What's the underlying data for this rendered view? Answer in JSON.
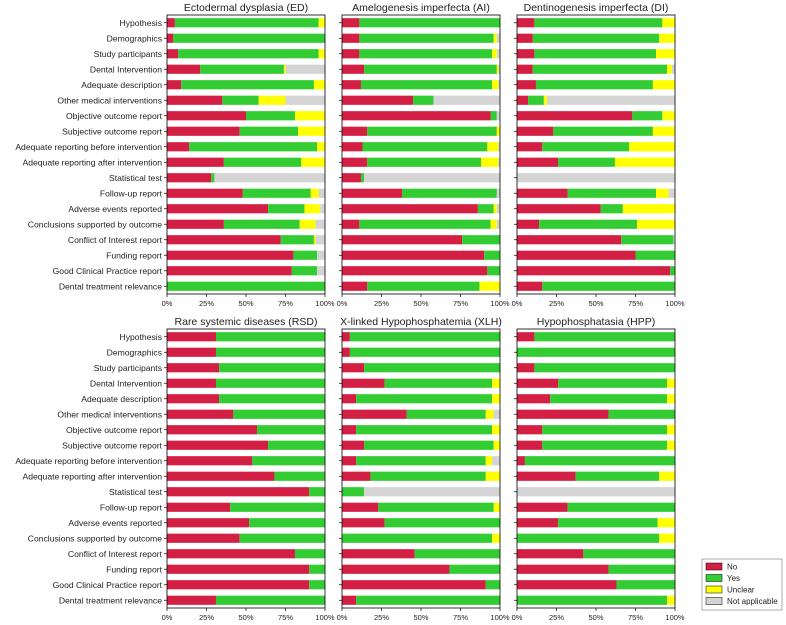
{
  "figure": {
    "categories": [
      "Hypothesis",
      "Demographics",
      "Study participants",
      "Dental Intervention",
      "Adequate description",
      "Other medical interventions",
      "Objective outcome report",
      "Subjective outcome report",
      "Adequate reporting before intervention",
      "Adequate reporting after intervention",
      "Statistical test",
      "Follow-up report",
      "Adverse events reported",
      "Conclusions supported by outcome",
      "Conflict of Interest report",
      "Funding report",
      "Good Clinical Practice report",
      "Dental treatment relevance"
    ],
    "xtick_labels": [
      "0%",
      "25%",
      "50%",
      "75%",
      "100%"
    ],
    "legend": [
      {
        "key": "no",
        "label": "No",
        "color": "#d41f45"
      },
      {
        "key": "yes",
        "label": "Yes",
        "color": "#33cc33"
      },
      {
        "key": "unclear",
        "label": "Unclear",
        "color": "#ffff00"
      },
      {
        "key": "na",
        "label": "Not applicable",
        "color": "#d4d4d4"
      }
    ]
  },
  "chart_data": [
    {
      "type": "bar",
      "stacked": true,
      "orientation": "horizontal",
      "title": "Ectodermal dysplasia (ED)",
      "xlim": [
        0,
        100
      ],
      "series": [
        {
          "name": "No",
          "values": [
            5,
            4,
            7,
            21,
            9,
            35,
            50,
            46,
            14,
            36,
            28,
            48,
            64,
            36,
            72,
            80,
            79,
            0
          ]
        },
        {
          "name": "Yes",
          "values": [
            91,
            96,
            89,
            53,
            84,
            23,
            31,
            37,
            81,
            49,
            2,
            43,
            23,
            48,
            21,
            15,
            16,
            100
          ]
        },
        {
          "name": "Unclear",
          "values": [
            4,
            0,
            4,
            1,
            7,
            17,
            19,
            17,
            5,
            15,
            0,
            5,
            10,
            10,
            1,
            0,
            0,
            0
          ]
        },
        {
          "name": "Not applicable",
          "values": [
            0,
            0,
            0,
            25,
            0,
            25,
            0,
            0,
            0,
            0,
            70,
            4,
            3,
            6,
            6,
            5,
            5,
            0
          ]
        }
      ]
    },
    {
      "type": "bar",
      "stacked": true,
      "orientation": "horizontal",
      "title": "Amelogenesis imperfecta (AI)",
      "xlim": [
        0,
        100
      ],
      "series": [
        {
          "name": "No",
          "values": [
            11,
            11,
            11,
            14,
            12,
            45,
            94,
            16,
            13,
            16,
            12,
            38,
            86,
            11,
            76,
            90,
            92,
            16
          ]
        },
        {
          "name": "Yes",
          "values": [
            89,
            85,
            84,
            84,
            83,
            13,
            4,
            82,
            79,
            72,
            2,
            60,
            10,
            83,
            24,
            10,
            8,
            71
          ]
        },
        {
          "name": "Unclear",
          "values": [
            0,
            2,
            3,
            1,
            4,
            0,
            0,
            2,
            7,
            11,
            0,
            0,
            2,
            4,
            0,
            0,
            0,
            13
          ]
        },
        {
          "name": "Not applicable",
          "values": [
            0,
            2,
            2,
            1,
            1,
            42,
            2,
            0,
            1,
            1,
            86,
            2,
            2,
            2,
            0,
            0,
            0,
            0
          ]
        }
      ]
    },
    {
      "type": "bar",
      "stacked": true,
      "orientation": "horizontal",
      "title": "Dentinogenesis imperfecta (DI)",
      "xlim": [
        0,
        100
      ],
      "series": [
        {
          "name": "No",
          "values": [
            11,
            10,
            11,
            10,
            12,
            7,
            73,
            23,
            16,
            26,
            0,
            32,
            53,
            14,
            66,
            75,
            97,
            16
          ]
        },
        {
          "name": "Yes",
          "values": [
            81,
            80,
            77,
            85,
            74,
            10,
            19,
            63,
            55,
            36,
            0,
            56,
            14,
            62,
            33,
            25,
            3,
            84
          ]
        },
        {
          "name": "Unclear",
          "values": [
            8,
            10,
            12,
            3,
            14,
            2,
            8,
            14,
            29,
            38,
            0,
            8,
            33,
            24,
            0,
            0,
            0,
            0
          ]
        },
        {
          "name": "Not applicable",
          "values": [
            0,
            0,
            0,
            2,
            0,
            81,
            0,
            0,
            0,
            0,
            100,
            4,
            0,
            0,
            1,
            0,
            0,
            0
          ]
        }
      ]
    },
    {
      "type": "bar",
      "stacked": true,
      "orientation": "horizontal",
      "title": "Rare systemic diseases (RSD)",
      "xlim": [
        0,
        100
      ],
      "series": [
        {
          "name": "No",
          "values": [
            31,
            31,
            33,
            31,
            33,
            42,
            57,
            64,
            54,
            68,
            90,
            40,
            52,
            46,
            81,
            90,
            90,
            31
          ]
        },
        {
          "name": "Yes",
          "values": [
            69,
            69,
            67,
            69,
            67,
            58,
            43,
            36,
            46,
            32,
            10,
            60,
            48,
            54,
            19,
            10,
            10,
            69
          ]
        },
        {
          "name": "Unclear",
          "values": [
            0,
            0,
            0,
            0,
            0,
            0,
            0,
            0,
            0,
            0,
            0,
            0,
            0,
            0,
            0,
            0,
            0,
            0
          ]
        },
        {
          "name": "Not applicable",
          "values": [
            0,
            0,
            0,
            0,
            0,
            0,
            0,
            0,
            0,
            0,
            0,
            0,
            0,
            0,
            0,
            0,
            0,
            0
          ]
        }
      ]
    },
    {
      "type": "bar",
      "stacked": true,
      "orientation": "horizontal",
      "title": "X-linked Hypophosphatemia (XLH)",
      "xlim": [
        0,
        100
      ],
      "series": [
        {
          "name": "No",
          "values": [
            5,
            5,
            14,
            27,
            9,
            41,
            9,
            14,
            9,
            18,
            0,
            23,
            27,
            0,
            46,
            68,
            91,
            9
          ]
        },
        {
          "name": "Yes",
          "values": [
            95,
            95,
            86,
            68,
            86,
            50,
            86,
            82,
            82,
            73,
            14,
            73,
            73,
            95,
            54,
            32,
            9,
            91
          ]
        },
        {
          "name": "Unclear",
          "values": [
            0,
            0,
            0,
            5,
            5,
            5,
            5,
            4,
            4,
            9,
            0,
            4,
            0,
            5,
            0,
            0,
            0,
            0
          ]
        },
        {
          "name": "Not applicable",
          "values": [
            0,
            0,
            0,
            0,
            0,
            4,
            0,
            0,
            5,
            0,
            86,
            0,
            0,
            0,
            0,
            0,
            0,
            0
          ]
        }
      ]
    },
    {
      "type": "bar",
      "stacked": true,
      "orientation": "horizontal",
      "title": "Hypophosphatasia (HPP)",
      "xlim": [
        0,
        100
      ],
      "series": [
        {
          "name": "No",
          "values": [
            11,
            0,
            11,
            26,
            21,
            58,
            16,
            16,
            5,
            37,
            0,
            32,
            26,
            0,
            42,
            58,
            63,
            0
          ]
        },
        {
          "name": "Yes",
          "values": [
            89,
            100,
            89,
            69,
            74,
            42,
            79,
            79,
            95,
            53,
            0,
            68,
            63,
            90,
            58,
            42,
            37,
            95
          ]
        },
        {
          "name": "Unclear",
          "values": [
            0,
            0,
            0,
            5,
            5,
            0,
            5,
            5,
            0,
            10,
            0,
            0,
            11,
            10,
            0,
            0,
            0,
            5
          ]
        },
        {
          "name": "Not applicable",
          "values": [
            0,
            0,
            0,
            0,
            0,
            0,
            0,
            0,
            0,
            0,
            100,
            0,
            0,
            0,
            0,
            0,
            0,
            0
          ]
        }
      ]
    }
  ]
}
